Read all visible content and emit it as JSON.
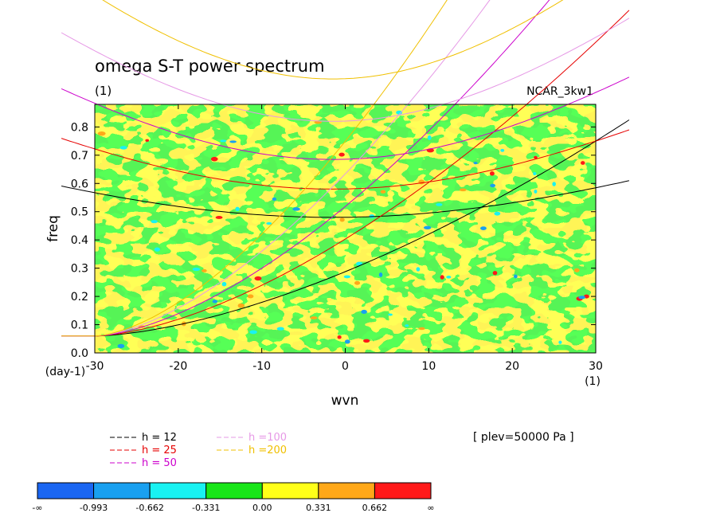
{
  "chart_data": {
    "type": "heatmap",
    "title": "omega S-T power spectrum",
    "subtitle": "(1)",
    "model_label": "NCAR_3kw1",
    "xlabel": "wvn",
    "ylabel": "freq",
    "x_unit": "(1)",
    "y_unit": "(day-1)",
    "xlim": [
      -30,
      30
    ],
    "ylim": [
      0,
      0.88
    ],
    "x_ticks": [
      "-30",
      "-20",
      "-10",
      "0",
      "10",
      "20",
      "30"
    ],
    "y_ticks": [
      "0.0",
      "0.1",
      "0.2",
      "0.3",
      "0.4",
      "0.5",
      "0.6",
      "0.7",
      "0.8"
    ],
    "x_tick_values": [
      -30,
      -20,
      -10,
      0,
      10,
      20,
      30
    ],
    "y_tick_values": [
      0,
      0.1,
      0.2,
      0.3,
      0.4,
      0.5,
      0.6,
      0.7,
      0.8
    ],
    "field_note": "[ plev=50000 Pa ]",
    "colorbar": {
      "labels": [
        "-∞",
        "-0.993",
        "-0.662",
        "-0.331",
        "0.00",
        "0.331",
        "0.662",
        "∞"
      ],
      "colors": [
        "#1a66f2",
        "#19a0f0",
        "#19f2f2",
        "#19e619",
        "#ffff19",
        "#ffa819",
        "#ff1919"
      ]
    },
    "background_colors": {
      "low": "#19e619",
      "high": "#ffff19"
    },
    "curves_legend": [
      {
        "label": "h = 12",
        "color": "#000000"
      },
      {
        "label": "h = 25",
        "color": "#e60000"
      },
      {
        "label": "h = 50",
        "color": "#cc00cc"
      },
      {
        "label": "h =100",
        "color": "#e699e6"
      },
      {
        "label": "h =200",
        "color": "#f0c000"
      }
    ],
    "curves": [
      {
        "name": "h = 12",
        "color": "#000000",
        "minimum": [
          -1.5,
          0.48
        ]
      },
      {
        "name": "h = 25",
        "color": "#e60000",
        "minimum": [
          -1.5,
          0.58
        ]
      },
      {
        "name": "h = 50",
        "color": "#cc00cc",
        "minimum": [
          -1.5,
          0.685
        ]
      },
      {
        "name": "h =100",
        "color": "#e699e6",
        "minimum": [
          -1.5,
          0.82
        ]
      },
      {
        "name": "h =200",
        "color": "#f0c000",
        "minimum": [
          -1.5,
          0.97
        ]
      }
    ]
  }
}
